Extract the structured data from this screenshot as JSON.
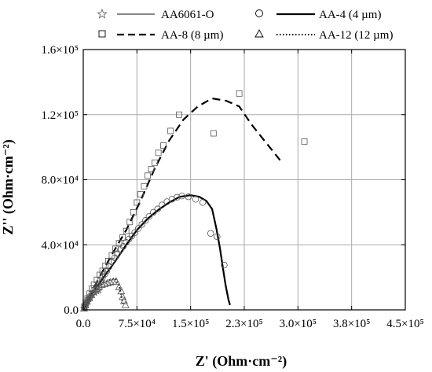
{
  "chart_data": {
    "type": "scatter",
    "xlabel": "Z' (Ohm·cm⁻²)",
    "ylabel": "Z'' (Ohm·cm⁻²)",
    "xlim": [
      0,
      450000
    ],
    "ylim": [
      0,
      160000
    ],
    "grid": true,
    "legend_position": "top",
    "x_ticks": [
      {
        "value": 0,
        "label": "0.0"
      },
      {
        "value": 75000,
        "label": "7.5×10⁴"
      },
      {
        "value": 150000,
        "label": "1.5×10⁵"
      },
      {
        "value": 225000,
        "label": "2.3×10⁵"
      },
      {
        "value": 300000,
        "label": "3.0×10⁵"
      },
      {
        "value": 375000,
        "label": "3.8×10⁵"
      },
      {
        "value": 450000,
        "label": "4.5×10⁵"
      }
    ],
    "y_ticks": [
      {
        "value": 0,
        "label": "0.0"
      },
      {
        "value": 40000,
        "label": "4.0×10⁴"
      },
      {
        "value": 80000,
        "label": "8.0×10⁴"
      },
      {
        "value": 120000,
        "label": "1.2×10⁵"
      },
      {
        "value": 160000,
        "label": "1.6×10⁵"
      }
    ],
    "series": [
      {
        "name": "AA6061-O",
        "marker": "star",
        "line_style": "solid",
        "color": "#888888",
        "points": [
          [
            1000,
            800
          ],
          [
            2500,
            2200
          ],
          [
            4000,
            3800
          ],
          [
            6000,
            5200
          ],
          [
            8000,
            6600
          ],
          [
            10000,
            8000
          ],
          [
            13000,
            9400
          ],
          [
            16000,
            10600
          ],
          [
            19000,
            11500
          ],
          [
            22000,
            11900
          ]
        ],
        "fit": [
          [
            500,
            500
          ],
          [
            3000,
            3000
          ],
          [
            7000,
            6500
          ],
          [
            11000,
            9200
          ],
          [
            15000,
            11200
          ],
          [
            19000,
            12300
          ],
          [
            23000,
            12600
          ],
          [
            26000,
            12300
          ]
        ]
      },
      {
        "name": "AA-4 (4 µm)",
        "marker": "circle",
        "line_style": "solid",
        "color": "#000000",
        "points": [
          [
            1500,
            1500
          ],
          [
            3500,
            3500
          ],
          [
            6000,
            6000
          ],
          [
            9000,
            8000
          ],
          [
            12000,
            10000
          ],
          [
            15000,
            12000
          ],
          [
            18000,
            14000
          ],
          [
            21000,
            16000
          ],
          [
            24000,
            18000
          ],
          [
            27000,
            20000
          ],
          [
            30000,
            22000
          ],
          [
            33000,
            24000
          ],
          [
            36000,
            26500
          ],
          [
            40000,
            29500
          ],
          [
            44000,
            32000
          ],
          [
            48000,
            34500
          ],
          [
            52000,
            37000
          ],
          [
            56000,
            39000
          ],
          [
            60000,
            41500
          ],
          [
            64000,
            43500
          ],
          [
            68000,
            45500
          ],
          [
            72000,
            47500
          ],
          [
            77000,
            50000
          ],
          [
            82000,
            52500
          ],
          [
            87000,
            55000
          ],
          [
            92000,
            57500
          ],
          [
            98000,
            60000
          ],
          [
            104000,
            62000
          ],
          [
            110000,
            64500
          ],
          [
            117000,
            66500
          ],
          [
            124000,
            68000
          ],
          [
            131000,
            69200
          ],
          [
            138000,
            70000
          ],
          [
            147000,
            69500
          ],
          [
            157000,
            68000
          ],
          [
            167000,
            66000
          ],
          [
            178000,
            47000
          ],
          [
            187000,
            45000
          ],
          [
            197000,
            27500
          ]
        ],
        "fit": [
          [
            0,
            0
          ],
          [
            15000,
            12000
          ],
          [
            30000,
            21000
          ],
          [
            45000,
            30000
          ],
          [
            60000,
            40000
          ],
          [
            75000,
            49000
          ],
          [
            90000,
            56000
          ],
          [
            105000,
            61500
          ],
          [
            120000,
            66000
          ],
          [
            135000,
            69500
          ],
          [
            150000,
            70500
          ],
          [
            162000,
            69500
          ],
          [
            172000,
            67000
          ],
          [
            180000,
            62000
          ],
          [
            186000,
            50000
          ],
          [
            191000,
            38000
          ],
          [
            195000,
            26000
          ],
          [
            199000,
            15000
          ],
          [
            203000,
            6000
          ],
          [
            205000,
            3000
          ]
        ]
      },
      {
        "name": "AA-8 (8 µm)",
        "marker": "square",
        "line_style": "dashed",
        "color": "#000000",
        "points": [
          [
            1500,
            2000
          ],
          [
            3500,
            4500
          ],
          [
            6000,
            7000
          ],
          [
            9000,
            10000
          ],
          [
            12000,
            13000
          ],
          [
            15000,
            15500
          ],
          [
            19000,
            18500
          ],
          [
            23000,
            21500
          ],
          [
            27000,
            24000
          ],
          [
            31000,
            27000
          ],
          [
            35000,
            30000
          ],
          [
            40000,
            33500
          ],
          [
            45000,
            37500
          ],
          [
            50000,
            41000
          ],
          [
            55000,
            44500
          ],
          [
            60000,
            48500
          ],
          [
            65000,
            54000
          ],
          [
            70000,
            60000
          ],
          [
            75000,
            66000
          ],
          [
            80000,
            71000
          ],
          [
            85000,
            76000
          ],
          [
            90000,
            82500
          ],
          [
            95000,
            86500
          ],
          [
            100000,
            90500
          ],
          [
            105000,
            96500
          ],
          [
            112000,
            101000
          ],
          [
            122000,
            110000
          ],
          [
            134000,
            120000
          ],
          [
            182000,
            108500
          ],
          [
            218000,
            133000
          ],
          [
            309000,
            103500
          ]
        ],
        "fit": [
          [
            0,
            0
          ],
          [
            20000,
            18000
          ],
          [
            40000,
            34000
          ],
          [
            60000,
            49000
          ],
          [
            80000,
            67000
          ],
          [
            100000,
            87000
          ],
          [
            120000,
            104000
          ],
          [
            140000,
            117000
          ],
          [
            160000,
            125000
          ],
          [
            180000,
            130000
          ],
          [
            200000,
            128500
          ],
          [
            218000,
            125000
          ],
          [
            235000,
            114000
          ],
          [
            255000,
            103000
          ],
          [
            275000,
            92000
          ]
        ]
      },
      {
        "name": "AA-12 (12 µm)",
        "marker": "triangle",
        "line_style": "dotted",
        "color": "#000000",
        "points": [
          [
            1000,
            900
          ],
          [
            3000,
            3000
          ],
          [
            5000,
            5200
          ],
          [
            8000,
            7200
          ],
          [
            11000,
            9200
          ],
          [
            14000,
            11000
          ],
          [
            18000,
            13000
          ],
          [
            22000,
            14500
          ],
          [
            26000,
            15500
          ],
          [
            30000,
            16000
          ],
          [
            34000,
            16500
          ],
          [
            38000,
            17000
          ],
          [
            42000,
            17500
          ],
          [
            46000,
            17500
          ],
          [
            50000,
            14000
          ],
          [
            53000,
            11500
          ],
          [
            55000,
            8000
          ],
          [
            57000,
            5500
          ],
          [
            59000,
            3000
          ]
        ],
        "fit": [
          [
            0,
            0
          ],
          [
            10000,
            9000
          ],
          [
            20000,
            14500
          ],
          [
            30000,
            17000
          ],
          [
            38000,
            18500
          ],
          [
            45000,
            19000
          ],
          [
            50000,
            15000
          ],
          [
            53000,
            9000
          ],
          [
            56000,
            3000
          ]
        ]
      }
    ]
  }
}
